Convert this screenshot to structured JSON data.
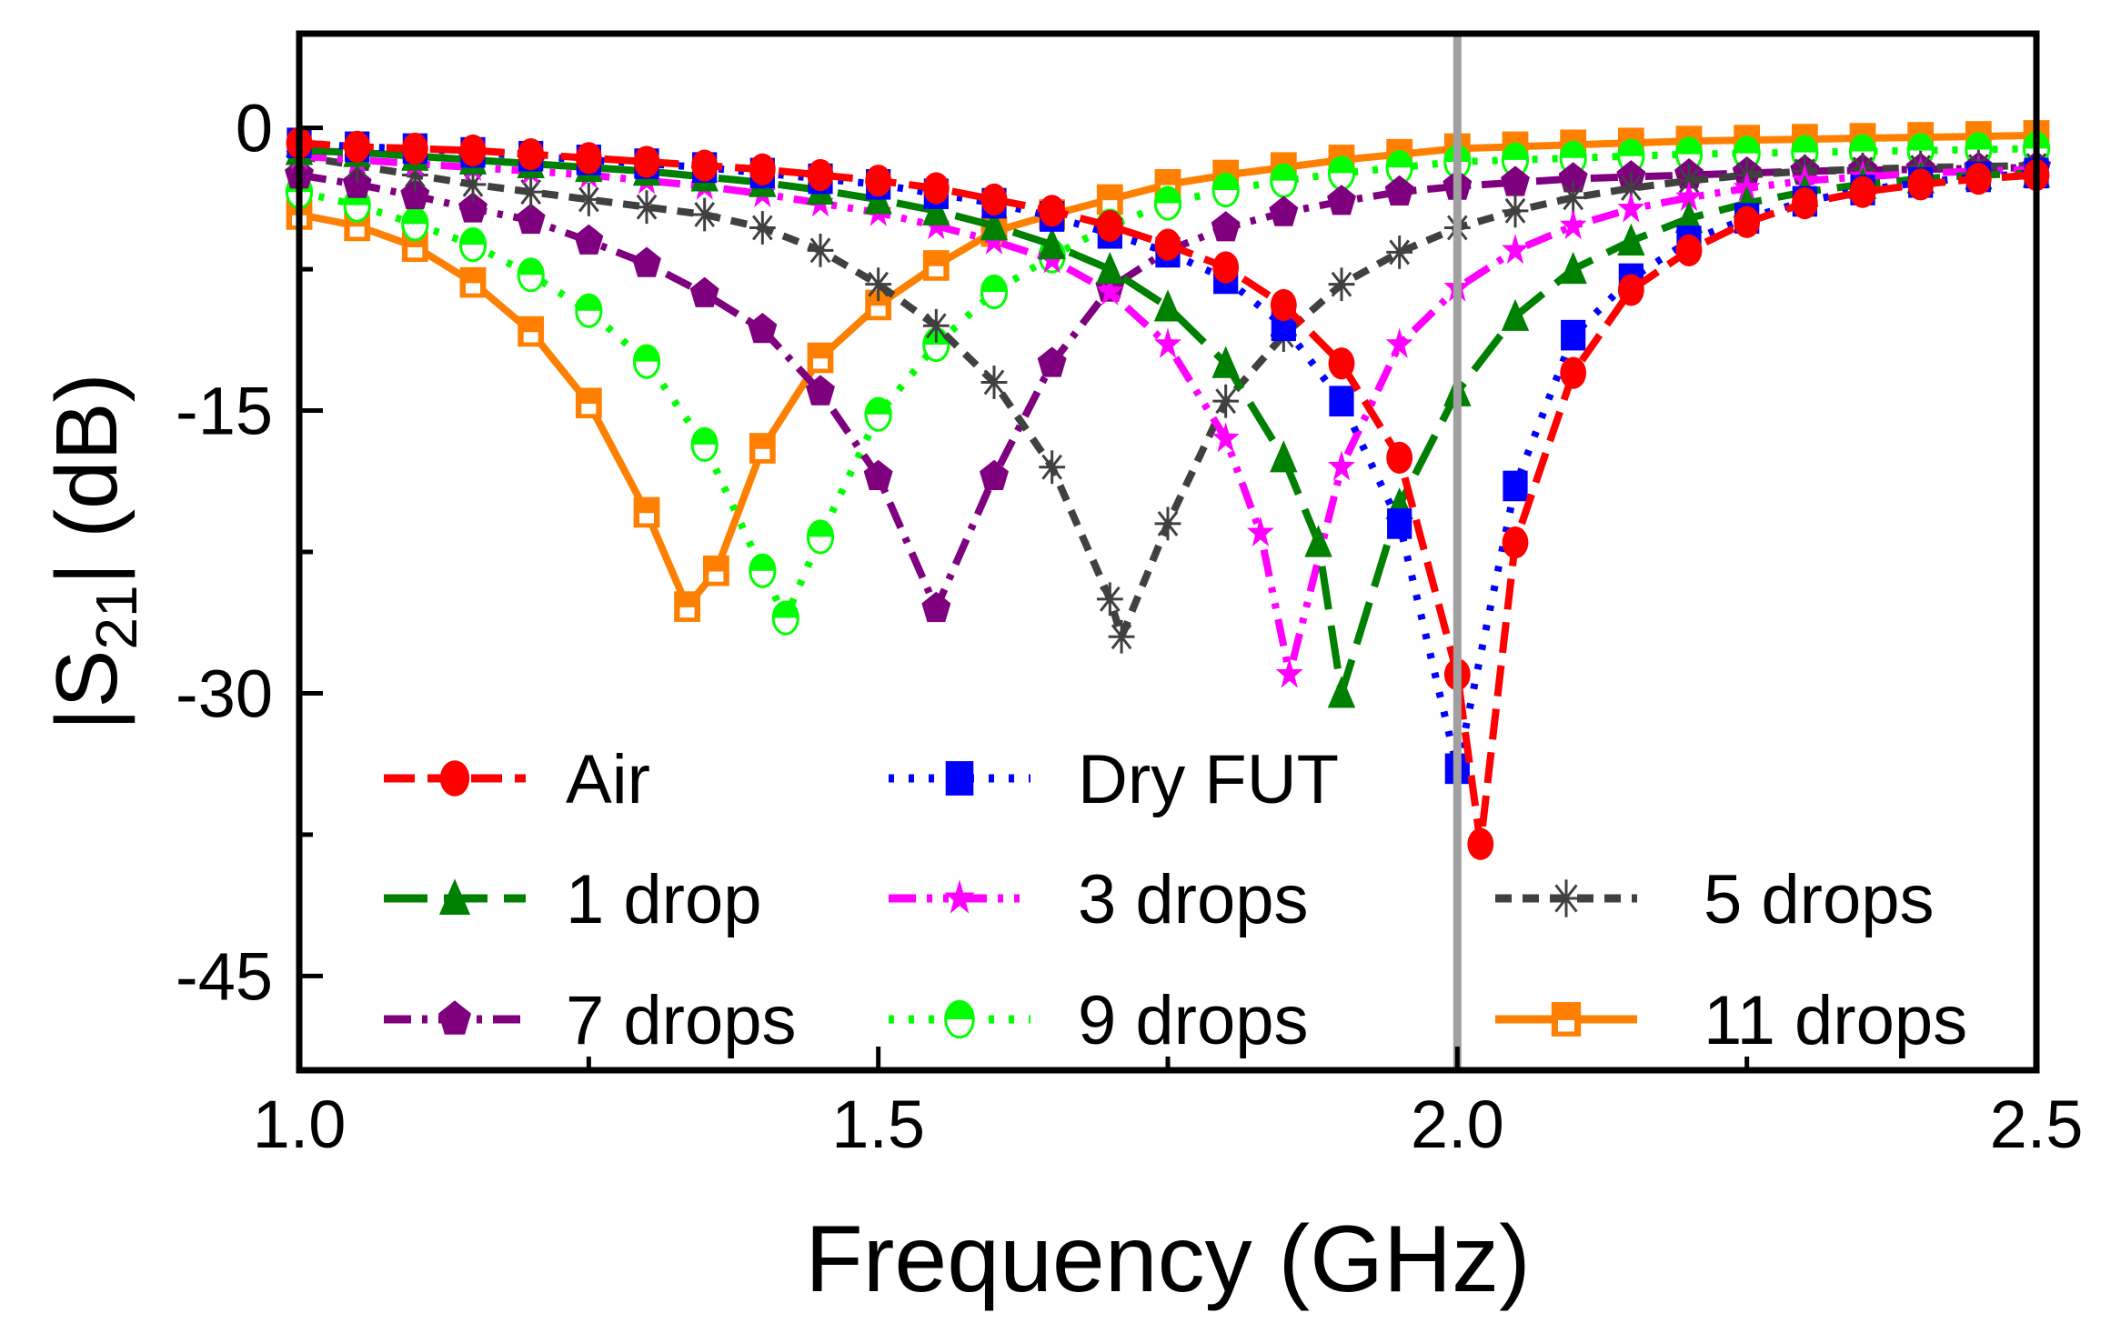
{
  "chart_data": {
    "type": "line",
    "xlabel": "Frequency (GHz)",
    "ylabel_main": "|S",
    "ylabel_sub": "21",
    "ylabel_tail": "| (dB)",
    "xlim": [
      1.0,
      2.5
    ],
    "ylim": [
      -50,
      5
    ],
    "xticks": [
      1.0,
      1.5,
      2.0,
      2.5
    ],
    "xtick_labels": [
      "1.0",
      "1.5",
      "2.0",
      "2.5"
    ],
    "yticks": [
      0,
      -15,
      -30,
      -45
    ],
    "ytick_labels": [
      "0",
      "-15",
      "-30",
      "-45"
    ],
    "grid": false,
    "reference_line_x": 2.0,
    "legend_placement": "bottom, inside plot, 3 columns",
    "series": [
      {
        "name": "Air",
        "color": "#ff0000",
        "marker": "circle",
        "dash": "dash",
        "x": [
          1.0,
          1.05,
          1.1,
          1.15,
          1.2,
          1.25,
          1.3,
          1.35,
          1.4,
          1.45,
          1.5,
          1.55,
          1.6,
          1.65,
          1.7,
          1.75,
          1.8,
          1.85,
          1.9,
          1.95,
          2.0,
          2.02,
          2.05,
          2.1,
          2.15,
          2.2,
          2.25,
          2.3,
          2.35,
          2.4,
          2.45,
          2.5
        ],
        "y": [
          -0.8,
          -1.0,
          -1.1,
          -1.2,
          -1.4,
          -1.6,
          -1.8,
          -2.0,
          -2.2,
          -2.5,
          -2.8,
          -3.2,
          -3.8,
          -4.4,
          -5.2,
          -6.2,
          -7.4,
          -9.4,
          -12.5,
          -17.5,
          -29,
          -38,
          -22,
          -13,
          -8.6,
          -6.5,
          -5.0,
          -4.0,
          -3.4,
          -3.0,
          -2.7,
          -2.5
        ]
      },
      {
        "name": "Dry FUT",
        "color": "#0000ff",
        "marker": "square",
        "dash": "dot",
        "x": [
          1.0,
          1.05,
          1.1,
          1.15,
          1.2,
          1.25,
          1.3,
          1.35,
          1.4,
          1.45,
          1.5,
          1.55,
          1.6,
          1.65,
          1.7,
          1.75,
          1.8,
          1.85,
          1.9,
          1.95,
          2.0,
          2.05,
          2.1,
          2.15,
          2.2,
          2.25,
          2.3,
          2.35,
          2.4,
          2.45,
          2.5
        ],
        "y": [
          -0.8,
          -1.0,
          -1.1,
          -1.3,
          -1.5,
          -1.7,
          -1.9,
          -2.1,
          -2.4,
          -2.7,
          -3.0,
          -3.5,
          -4.0,
          -4.7,
          -5.6,
          -6.6,
          -8.0,
          -10.5,
          -14.5,
          -21,
          -34,
          -19,
          -11,
          -8,
          -6,
          -4.8,
          -3.9,
          -3.3,
          -2.9,
          -2.6,
          -2.4
        ]
      },
      {
        "name": "1 drop",
        "color": "#008000",
        "marker": "triangle",
        "dash": "longdash",
        "x": [
          1.0,
          1.05,
          1.1,
          1.15,
          1.2,
          1.25,
          1.3,
          1.35,
          1.4,
          1.45,
          1.5,
          1.55,
          1.6,
          1.65,
          1.7,
          1.75,
          1.8,
          1.85,
          1.88,
          1.9,
          1.95,
          2.0,
          2.05,
          2.1,
          2.15,
          2.2,
          2.25,
          2.3,
          2.35,
          2.4,
          2.45,
          2.5
        ],
        "y": [
          -1.2,
          -1.3,
          -1.5,
          -1.7,
          -1.9,
          -2.1,
          -2.3,
          -2.6,
          -2.9,
          -3.3,
          -3.8,
          -4.4,
          -5.2,
          -6.2,
          -7.5,
          -9.5,
          -12.5,
          -17.5,
          -22,
          -30,
          -20,
          -14,
          -10,
          -7.5,
          -6,
          -4.8,
          -4,
          -3.4,
          -3.0,
          -2.7,
          -2.5,
          -2.4
        ]
      },
      {
        "name": "3 drops",
        "color": "#ff00ff",
        "marker": "star",
        "dash": "dashdotdot",
        "x": [
          1.0,
          1.05,
          1.1,
          1.15,
          1.2,
          1.25,
          1.3,
          1.35,
          1.4,
          1.45,
          1.5,
          1.55,
          1.6,
          1.65,
          1.7,
          1.75,
          1.8,
          1.83,
          1.855,
          1.9,
          1.95,
          2.0,
          2.05,
          2.1,
          2.15,
          2.2,
          2.25,
          2.3,
          2.35,
          2.4,
          2.45,
          2.5
        ],
        "y": [
          -1.5,
          -1.7,
          -1.9,
          -2.1,
          -2.3,
          -2.5,
          -2.8,
          -3.1,
          -3.5,
          -4.0,
          -4.5,
          -5.2,
          -6,
          -7,
          -8.7,
          -11.5,
          -16.5,
          -21.5,
          -29,
          -18,
          -11.5,
          -8.5,
          -6.5,
          -5.2,
          -4.3,
          -3.7,
          -3.2,
          -2.8,
          -2.6,
          -2.4,
          -2.3,
          -2.2
        ]
      },
      {
        "name": "5 drops",
        "color": "#404040",
        "marker": "asterisk",
        "dash": "shortdash",
        "x": [
          1.0,
          1.05,
          1.1,
          1.15,
          1.2,
          1.25,
          1.3,
          1.35,
          1.4,
          1.45,
          1.5,
          1.55,
          1.6,
          1.65,
          1.7,
          1.71,
          1.75,
          1.8,
          1.85,
          1.9,
          1.95,
          2.0,
          2.05,
          2.1,
          2.15,
          2.2,
          2.25,
          2.3,
          2.35,
          2.4,
          2.45,
          2.5
        ],
        "y": [
          -1.5,
          -2.0,
          -2.5,
          -3.0,
          -3.4,
          -3.8,
          -4.2,
          -4.6,
          -5.3,
          -6.5,
          -8.3,
          -10.5,
          -13.5,
          -18,
          -25,
          -27,
          -21,
          -14.5,
          -11,
          -8.3,
          -6.6,
          -5.3,
          -4.4,
          -3.7,
          -3.2,
          -2.8,
          -2.5,
          -2.3,
          -2.2,
          -2.1,
          -2.05,
          -2.0
        ]
      },
      {
        "name": "7 drops",
        "color": "#7f007f",
        "marker": "pentagon",
        "dash": "dashdot",
        "x": [
          1.0,
          1.05,
          1.1,
          1.15,
          1.2,
          1.25,
          1.3,
          1.35,
          1.4,
          1.45,
          1.5,
          1.55,
          1.6,
          1.65,
          1.7,
          1.75,
          1.8,
          1.85,
          1.9,
          1.95,
          2.0,
          2.05,
          2.1,
          2.15,
          2.2,
          2.25,
          2.3,
          2.35,
          2.4,
          2.45,
          2.5
        ],
        "y": [
          -2.5,
          -3.0,
          -3.6,
          -4.3,
          -4.9,
          -6.0,
          -7.2,
          -8.8,
          -10.7,
          -14,
          -18.5,
          -25.5,
          -18.5,
          -12.5,
          -8.5,
          -6.5,
          -5.3,
          -4.5,
          -3.9,
          -3.4,
          -3.1,
          -2.9,
          -2.7,
          -2.6,
          -2.5,
          -2.4,
          -2.3,
          -2.25,
          -2.2,
          -2.15,
          -2.1
        ]
      },
      {
        "name": "9 drops",
        "color": "#00ff00",
        "marker": "halfcircle",
        "dash": "dot",
        "x": [
          1.0,
          1.05,
          1.1,
          1.15,
          1.2,
          1.25,
          1.3,
          1.35,
          1.4,
          1.42,
          1.45,
          1.5,
          1.55,
          1.6,
          1.65,
          1.7,
          1.75,
          1.8,
          1.85,
          1.9,
          1.95,
          2.0,
          2.05,
          2.1,
          2.15,
          2.2,
          2.25,
          2.3,
          2.35,
          2.4,
          2.45,
          2.5
        ],
        "y": [
          -3.4,
          -4.1,
          -5.1,
          -6.2,
          -7.8,
          -9.7,
          -12.4,
          -16.8,
          -23.5,
          -26,
          -21.7,
          -15.2,
          -11.5,
          -8.7,
          -6.8,
          -5.2,
          -4.0,
          -3.3,
          -2.8,
          -2.4,
          -2.1,
          -1.8,
          -1.7,
          -1.6,
          -1.5,
          -1.4,
          -1.35,
          -1.3,
          -1.25,
          -1.2,
          -1.15,
          -1.1
        ]
      },
      {
        "name": "11 drops",
        "color": "#ff8000",
        "marker": "opensquare",
        "dash": "solid",
        "x": [
          1.0,
          1.05,
          1.1,
          1.15,
          1.2,
          1.25,
          1.3,
          1.335,
          1.36,
          1.4,
          1.45,
          1.5,
          1.55,
          1.6,
          1.65,
          1.7,
          1.75,
          1.8,
          1.85,
          1.9,
          1.95,
          2.0,
          2.05,
          2.1,
          2.15,
          2.2,
          2.25,
          2.3,
          2.35,
          2.4,
          2.45,
          2.5
        ],
        "y": [
          -4.6,
          -5.2,
          -6.3,
          -8.2,
          -10.8,
          -14.6,
          -20.4,
          -25.4,
          -23.5,
          -17,
          -12.2,
          -9.4,
          -7.3,
          -5.5,
          -4.6,
          -3.8,
          -3.0,
          -2.5,
          -2.1,
          -1.7,
          -1.4,
          -1.1,
          -1.0,
          -0.9,
          -0.8,
          -0.7,
          -0.65,
          -0.6,
          -0.55,
          -0.5,
          -0.45,
          -0.4
        ]
      }
    ]
  }
}
